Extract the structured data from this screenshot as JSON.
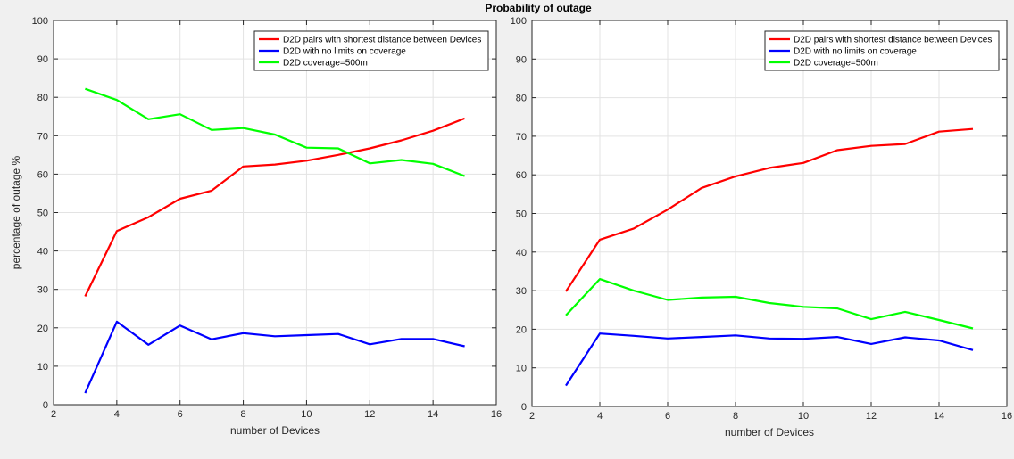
{
  "figure": {
    "suptitle": "Probability of outage",
    "background": "#f0f0f0"
  },
  "colors": {
    "red": "#ff0000",
    "blue": "#0000ff",
    "green": "#00ff00",
    "grid": "#e3e3e3",
    "axis": "#262626"
  },
  "chart_data": [
    {
      "type": "line",
      "xlabel": "number of Devices",
      "ylabel": "percentage of outage %",
      "xlim": [
        2,
        16
      ],
      "ylim": [
        0,
        100
      ],
      "xticks": [
        2,
        4,
        6,
        8,
        10,
        12,
        14,
        16
      ],
      "yticks": [
        0,
        10,
        20,
        30,
        40,
        50,
        60,
        70,
        80,
        90,
        100
      ],
      "grid": true,
      "legend_position": "top-right",
      "x": [
        3,
        4,
        5,
        6,
        7,
        8,
        9,
        10,
        11,
        12,
        13,
        14,
        15
      ],
      "series": [
        {
          "name": "D2D pairs with shortest distance between Devices",
          "color": "#ff0000",
          "values": [
            28.2,
            45.2,
            48.8,
            53.6,
            55.7,
            62.0,
            62.5,
            63.5,
            65.0,
            66.7,
            68.8,
            71.3,
            74.5
          ]
        },
        {
          "name": "D2D with no limits on coverage",
          "color": "#0000ff",
          "values": [
            3.0,
            21.6,
            15.6,
            20.6,
            17.0,
            18.6,
            17.8,
            18.1,
            18.4,
            15.7,
            17.1,
            17.1,
            15.2
          ]
        },
        {
          "name": "D2D coverage=500m",
          "color": "#00ff00",
          "values": [
            82.2,
            79.3,
            74.3,
            75.6,
            71.5,
            72.0,
            70.3,
            66.9,
            66.7,
            62.8,
            63.7,
            62.7,
            59.5
          ]
        }
      ]
    },
    {
      "type": "line",
      "xlabel": "number of Devices",
      "ylabel": "",
      "xlim": [
        2,
        16
      ],
      "ylim": [
        0,
        100
      ],
      "xticks": [
        2,
        4,
        6,
        8,
        10,
        12,
        14,
        16
      ],
      "yticks": [
        0,
        10,
        20,
        30,
        40,
        50,
        60,
        70,
        80,
        90,
        100
      ],
      "grid": true,
      "legend_position": "top-right",
      "x": [
        3,
        4,
        5,
        6,
        7,
        8,
        9,
        10,
        11,
        12,
        13,
        14,
        15
      ],
      "series": [
        {
          "name": "D2D pairs with shortest distance between Devices",
          "color": "#ff0000",
          "values": [
            29.8,
            43.2,
            46.1,
            51.0,
            56.6,
            59.6,
            61.8,
            63.1,
            66.4,
            67.5,
            68.0,
            71.2,
            71.9
          ]
        },
        {
          "name": "D2D with no limits on coverage",
          "color": "#0000ff",
          "values": [
            5.4,
            18.9,
            18.3,
            17.6,
            18.0,
            18.4,
            17.6,
            17.5,
            18.0,
            16.2,
            17.9,
            17.1,
            14.6
          ]
        },
        {
          "name": "D2D coverage=500m",
          "color": "#00ff00",
          "values": [
            23.6,
            33.0,
            30.0,
            27.6,
            28.2,
            28.4,
            26.8,
            25.8,
            25.4,
            22.6,
            24.5,
            22.4,
            20.2
          ]
        }
      ]
    }
  ]
}
